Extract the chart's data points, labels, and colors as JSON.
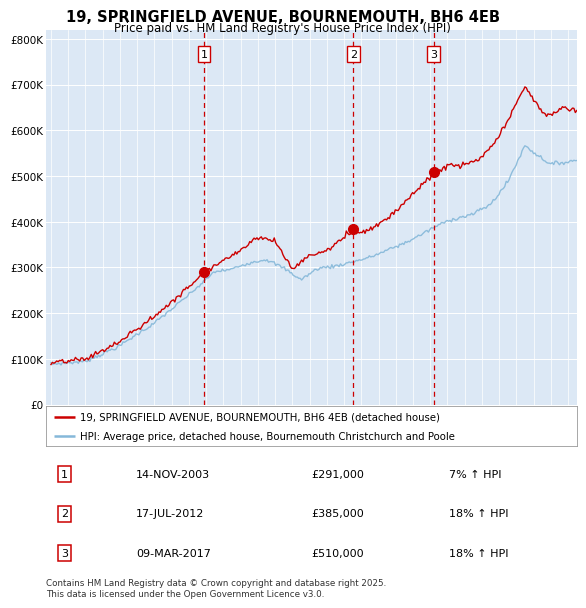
{
  "title_line1": "19, SPRINGFIELD AVENUE, BOURNEMOUTH, BH6 4EB",
  "title_line2": "Price paid vs. HM Land Registry's House Price Index (HPI)",
  "ylabel_ticks": [
    "£0",
    "£100K",
    "£200K",
    "£300K",
    "£400K",
    "£500K",
    "£600K",
    "£700K",
    "£800K"
  ],
  "ylabel_values": [
    0,
    100000,
    200000,
    300000,
    400000,
    500000,
    600000,
    700000,
    800000
  ],
  "ylim": [
    0,
    820000
  ],
  "xlim_left": 1994.7,
  "xlim_right": 2025.5,
  "sale_dates_num": [
    2003.87,
    2012.54,
    2017.19
  ],
  "sale_prices": [
    291000,
    385000,
    510000
  ],
  "sale_labels": [
    "1",
    "2",
    "3"
  ],
  "legend_entries": [
    "19, SPRINGFIELD AVENUE, BOURNEMOUTH, BH6 4EB (detached house)",
    "HPI: Average price, detached house, Bournemouth Christchurch and Poole"
  ],
  "legend_colors": [
    "#cc0000",
    "#85b8d9"
  ],
  "table_rows": [
    [
      "1",
      "14-NOV-2003",
      "£291,000",
      "7% ↑ HPI"
    ],
    [
      "2",
      "17-JUL-2012",
      "£385,000",
      "18% ↑ HPI"
    ],
    [
      "3",
      "09-MAR-2017",
      "£510,000",
      "18% ↑ HPI"
    ]
  ],
  "footer_text": "Contains HM Land Registry data © Crown copyright and database right 2025.\nThis data is licensed under the Open Government Licence v3.0.",
  "plot_bg_color": "#dce8f5",
  "red_line_color": "#cc0000",
  "blue_line_color": "#85b8d9",
  "dashed_color": "#cc0000",
  "label_box_color": "#cc0000"
}
